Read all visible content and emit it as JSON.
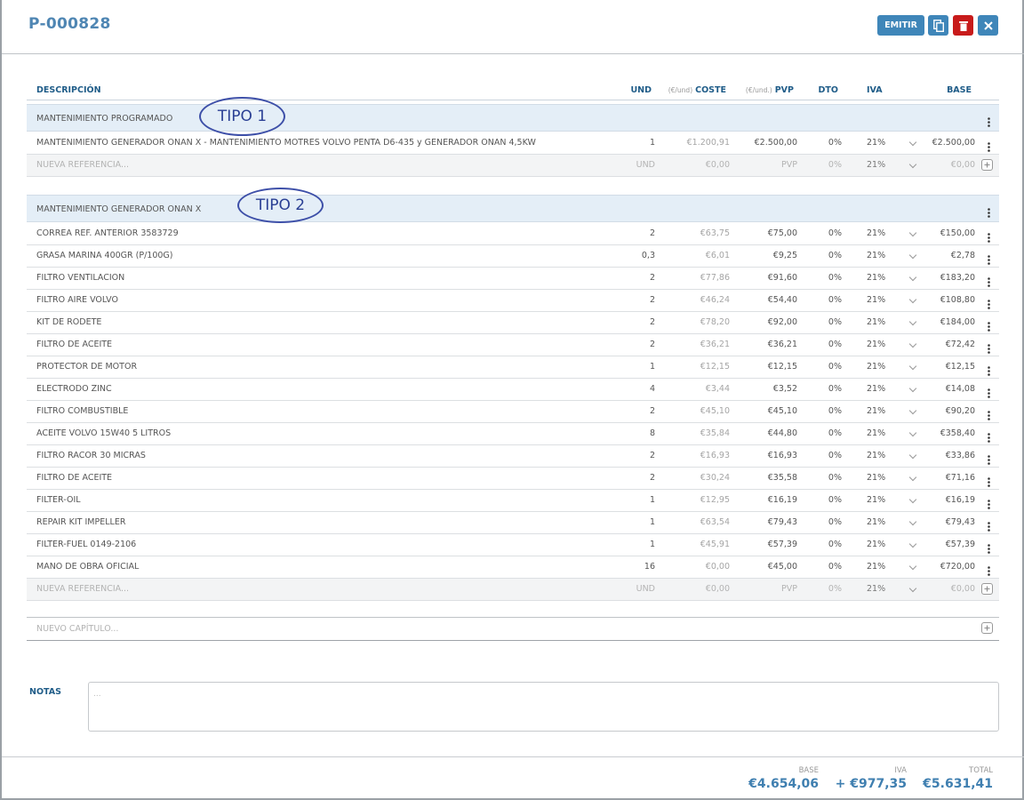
{
  "header": {
    "title": "P-000828",
    "emit_button": "EMITIR"
  },
  "table": {
    "columns": {
      "desc": "DESCRIPCIÓN",
      "und": "UND",
      "cost": {
        "prefix": "(€/und)",
        "label": "COSTE"
      },
      "pvp": {
        "prefix": "(€/und.)",
        "label": "PVP"
      },
      "dto": "DTO",
      "iva": "IVA",
      "base": "BASE"
    },
    "chapters": [
      {
        "title": "MANTENIMIENTO PROGRAMADO",
        "annotation": "TIPO 1",
        "rows": [
          {
            "desc": "MANTENIMIENTO GENERADOR ONAN X - MANTENIMIENTO MOTRES VOLVO PENTA D6-435 y GENERADOR ONAN 4,5KW",
            "und": "1",
            "cost": "€1.200,91",
            "pvp": "€2.500,00",
            "dto": "0%",
            "iva": "21%",
            "base": "€2.500,00"
          }
        ],
        "new_row": {
          "desc": "NUEVA REFERENCIA...",
          "und": "UND",
          "cost": "€0,00",
          "pvp": "PVP",
          "dto": "0%",
          "iva": "21%",
          "base": "€0,00"
        }
      },
      {
        "title": "MANTENIMIENTO GENERADOR ONAN X",
        "annotation": "TIPO 2",
        "rows": [
          {
            "desc": "CORREA REF. ANTERIOR 3583729",
            "und": "2",
            "cost": "€63,75",
            "pvp": "€75,00",
            "dto": "0%",
            "iva": "21%",
            "base": "€150,00"
          },
          {
            "desc": "GRASA MARINA 400GR (P/100G)",
            "und": "0,3",
            "cost": "€6,01",
            "pvp": "€9,25",
            "dto": "0%",
            "iva": "21%",
            "base": "€2,78"
          },
          {
            "desc": "FILTRO VENTILACION",
            "und": "2",
            "cost": "€77,86",
            "pvp": "€91,60",
            "dto": "0%",
            "iva": "21%",
            "base": "€183,20"
          },
          {
            "desc": "FILTRO AIRE VOLVO",
            "und": "2",
            "cost": "€46,24",
            "pvp": "€54,40",
            "dto": "0%",
            "iva": "21%",
            "base": "€108,80"
          },
          {
            "desc": "KIT DE RODETE",
            "und": "2",
            "cost": "€78,20",
            "pvp": "€92,00",
            "dto": "0%",
            "iva": "21%",
            "base": "€184,00"
          },
          {
            "desc": "FILTRO DE ACEITE",
            "und": "2",
            "cost": "€36,21",
            "pvp": "€36,21",
            "dto": "0%",
            "iva": "21%",
            "base": "€72,42"
          },
          {
            "desc": "PROTECTOR DE MOTOR",
            "und": "1",
            "cost": "€12,15",
            "pvp": "€12,15",
            "dto": "0%",
            "iva": "21%",
            "base": "€12,15"
          },
          {
            "desc": "ELECTRODO ZINC",
            "und": "4",
            "cost": "€3,44",
            "pvp": "€3,52",
            "dto": "0%",
            "iva": "21%",
            "base": "€14,08"
          },
          {
            "desc": "FILTRO COMBUSTIBLE",
            "und": "2",
            "cost": "€45,10",
            "pvp": "€45,10",
            "dto": "0%",
            "iva": "21%",
            "base": "€90,20"
          },
          {
            "desc": "ACEITE VOLVO 15W40 5 LITROS",
            "und": "8",
            "cost": "€35,84",
            "pvp": "€44,80",
            "dto": "0%",
            "iva": "21%",
            "base": "€358,40"
          },
          {
            "desc": "FILTRO RACOR 30 MICRAS",
            "und": "2",
            "cost": "€16,93",
            "pvp": "€16,93",
            "dto": "0%",
            "iva": "21%",
            "base": "€33,86"
          },
          {
            "desc": "FILTRO DE ACEITE",
            "und": "2",
            "cost": "€30,24",
            "pvp": "€35,58",
            "dto": "0%",
            "iva": "21%",
            "base": "€71,16"
          },
          {
            "desc": "FILTER-OIL",
            "und": "1",
            "cost": "€12,95",
            "pvp": "€16,19",
            "dto": "0%",
            "iva": "21%",
            "base": "€16,19"
          },
          {
            "desc": "REPAIR KIT IMPELLER",
            "und": "1",
            "cost": "€63,54",
            "pvp": "€79,43",
            "dto": "0%",
            "iva": "21%",
            "base": "€79,43"
          },
          {
            "desc": "FILTER-FUEL 0149-2106",
            "und": "1",
            "cost": "€45,91",
            "pvp": "€57,39",
            "dto": "0%",
            "iva": "21%",
            "base": "€57,39"
          },
          {
            "desc": "MANO DE OBRA OFICIAL",
            "und": "16",
            "cost": "€0,00",
            "pvp": "€45,00",
            "dto": "0%",
            "iva": "21%",
            "base": "€720,00"
          }
        ],
        "new_row": {
          "desc": "NUEVA REFERENCIA...",
          "und": "UND",
          "cost": "€0,00",
          "pvp": "PVP",
          "dto": "0%",
          "iva": "21%",
          "base": "€0,00"
        }
      }
    ],
    "new_chapter": "NUEVO CAPÍTULO..."
  },
  "notes": {
    "label": "NOTAS",
    "placeholder": "..."
  },
  "totals": {
    "base": {
      "label": "BASE",
      "value": "€4.654,06"
    },
    "iva": {
      "label": "IVA",
      "value": "+ €977,35"
    },
    "total": {
      "label": "TOTAL",
      "value": "€5.631,41"
    }
  }
}
